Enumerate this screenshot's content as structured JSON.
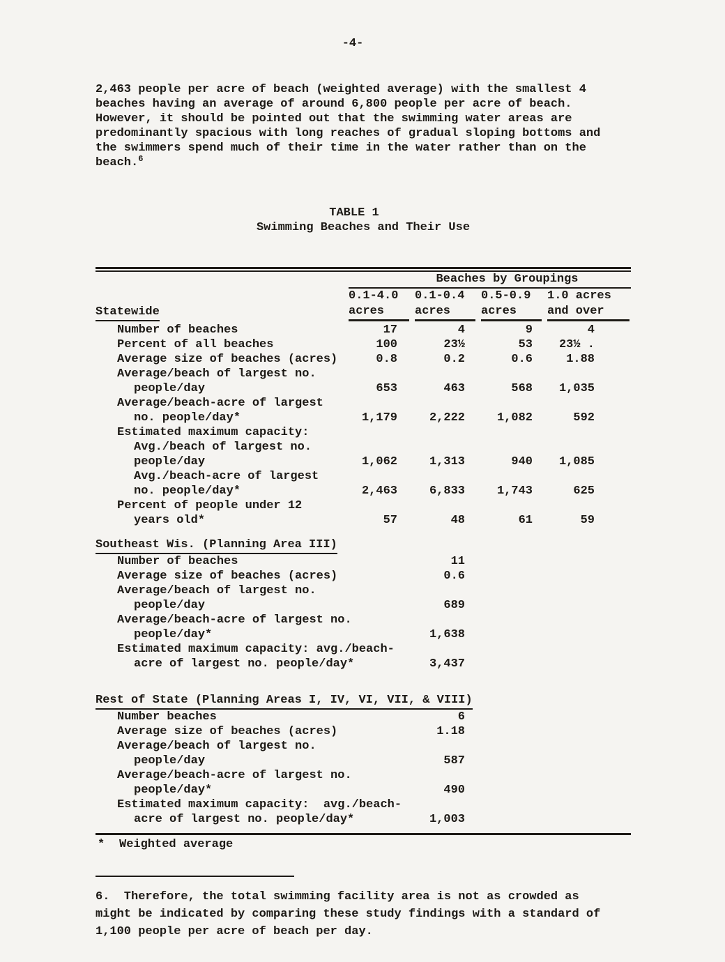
{
  "colors": {
    "paper": "#f5f4f1",
    "ink": "#1d1a16"
  },
  "page": {
    "number": "-4-"
  },
  "intro": {
    "lines": [
      "2,463 people per acre of beach (weighted average) with the smallest 4",
      "beaches having an average of around 6,800 people per acre of beach.",
      "However, it should be pointed out that the swimming water areas are",
      "predominantly spacious with long reaches of gradual sloping bottoms and",
      "the swimmers spend much of their time in the water rather than on the",
      "beach."
    ],
    "footnote_ref": "6"
  },
  "table": {
    "title": "TABLE 1",
    "subtitle": "Swimming Beaches and Their Use",
    "group_header": "Beaches by Groupings",
    "columns": [
      {
        "line1": "0.1-4.0",
        "line2": "acres"
      },
      {
        "line1": "0.1-0.4",
        "line2": "acres"
      },
      {
        "line1": "0.5-0.9",
        "line2": "acres"
      },
      {
        "line1": "1.0 acres",
        "line2": "and over"
      }
    ],
    "sections": [
      {
        "heading": "Statewide",
        "rows": [
          {
            "label": "Number of beaches",
            "indent": 1,
            "values": [
              "17",
              "4",
              "9",
              "4"
            ]
          },
          {
            "label": "Percent of all beaches",
            "indent": 1,
            "values": [
              "100",
              "23½",
              "53",
              "23½ ."
            ]
          },
          {
            "label": "Average size of beaches (acres)",
            "indent": 1,
            "values": [
              "0.8",
              "0.2",
              "0.6",
              "1.88"
            ]
          },
          {
            "label": "Average/beach of largest no.",
            "indent": 1,
            "values": [
              "",
              "",
              "",
              ""
            ]
          },
          {
            "label": "people/day",
            "indent": 2,
            "values": [
              "653",
              "463",
              "568",
              "1,035"
            ]
          },
          {
            "label": "Average/beach-acre of largest",
            "indent": 1,
            "values": [
              "",
              "",
              "",
              ""
            ]
          },
          {
            "label": "no. people/day*",
            "indent": 2,
            "values": [
              "1,179",
              "2,222",
              "1,082",
              "592"
            ]
          },
          {
            "label": "Estimated maximum capacity:",
            "indent": 1,
            "values": [
              "",
              "",
              "",
              ""
            ]
          },
          {
            "label": "Avg./beach of largest no.",
            "indent": 2,
            "values": [
              "",
              "",
              "",
              ""
            ]
          },
          {
            "label": "people/day",
            "indent": 2,
            "values": [
              "1,062",
              "1,313",
              "940",
              "1,085"
            ]
          },
          {
            "label": "Avg./beach-acre of largest",
            "indent": 2,
            "values": [
              "",
              "",
              "",
              ""
            ]
          },
          {
            "label": "no. people/day*",
            "indent": 2,
            "values": [
              "2,463",
              "6,833",
              "1,743",
              "625"
            ]
          },
          {
            "label": "Percent of people under 12",
            "indent": 1,
            "values": [
              "",
              "",
              "",
              ""
            ]
          },
          {
            "label": "years old*",
            "indent": 2,
            "values": [
              "57",
              "48",
              "61",
              "59"
            ]
          }
        ]
      },
      {
        "heading": "Southeast Wis. (Planning Area III)",
        "rows": [
          {
            "label": "Number of beaches",
            "indent": 1,
            "values": [
              "",
              "11",
              "",
              ""
            ]
          },
          {
            "label": "Average size of beaches (acres)",
            "indent": 1,
            "values": [
              "",
              "0.6",
              "",
              ""
            ]
          },
          {
            "label": "Average/beach of largest no.",
            "indent": 1,
            "values": [
              "",
              "",
              "",
              ""
            ]
          },
          {
            "label": "people/day",
            "indent": 2,
            "values": [
              "",
              "689",
              "",
              ""
            ]
          },
          {
            "label": "Average/beach-acre of largest no.",
            "indent": 1,
            "values": [
              "",
              "",
              "",
              ""
            ]
          },
          {
            "label": "people/day*",
            "indent": 2,
            "values": [
              "",
              "1,638",
              "",
              ""
            ]
          },
          {
            "label": "Estimated maximum capacity: avg./beach-",
            "indent": 1,
            "values": [
              "",
              "",
              "",
              ""
            ]
          },
          {
            "label": "acre of largest no. people/day*",
            "indent": 2,
            "values": [
              "",
              "3,437",
              "",
              ""
            ]
          }
        ]
      },
      {
        "heading": "Rest of State (Planning Areas I, IV, VI, VII, & VIII)",
        "rows": [
          {
            "label": "Number beaches",
            "indent": 1,
            "values": [
              "",
              "6",
              "",
              ""
            ]
          },
          {
            "label": "Average size of beaches (acres)",
            "indent": 1,
            "values": [
              "",
              "1.18",
              "",
              ""
            ]
          },
          {
            "label": "Average/beach of largest no.",
            "indent": 1,
            "values": [
              "",
              "",
              "",
              ""
            ]
          },
          {
            "label": "people/day",
            "indent": 2,
            "values": [
              "",
              "587",
              "",
              ""
            ]
          },
          {
            "label": "Average/beach-acre of largest no.",
            "indent": 1,
            "values": [
              "",
              "",
              "",
              ""
            ]
          },
          {
            "label": "people/day*",
            "indent": 2,
            "values": [
              "",
              "490",
              "",
              ""
            ]
          },
          {
            "label": "Estimated maximum capacity:  avg./beach-",
            "indent": 1,
            "values": [
              "",
              "",
              "",
              ""
            ]
          },
          {
            "label": "acre of largest no. people/day*",
            "indent": 2,
            "values": [
              "",
              "1,003",
              "",
              ""
            ]
          }
        ]
      }
    ],
    "footnote_marker": "*",
    "footnote_text": "Weighted average"
  },
  "footnote": {
    "lines": [
      "6.  Therefore, the total swimming facility area is not as crowded as",
      "might be indicated by comparing these study findings with a standard of",
      "1,100 people per acre of beach per day."
    ]
  }
}
